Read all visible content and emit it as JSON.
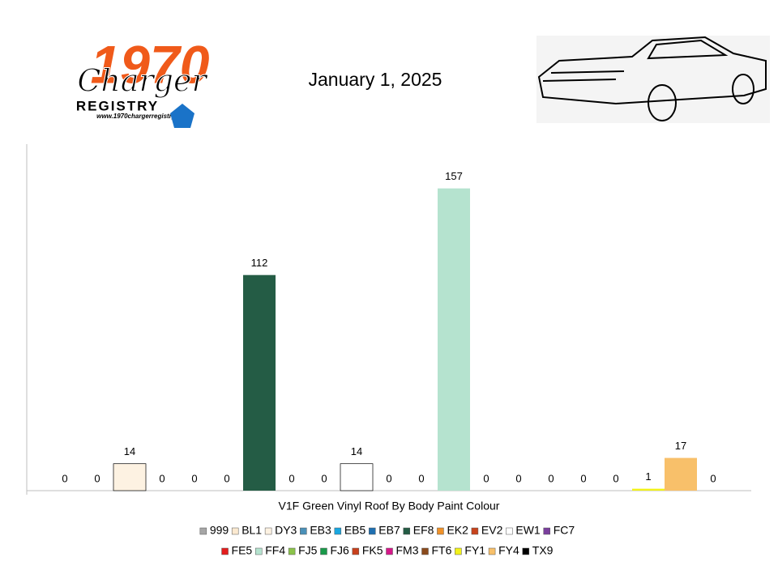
{
  "header": {
    "logo_year": "1970",
    "logo_name": "Charger",
    "logo_registry": "REGISTRY",
    "logo_url": "www.1970chargerregistry.com/"
  },
  "chart_data": {
    "type": "bar",
    "title": "January 1, 2025",
    "categories": [
      "V1F Green Vinyl Roof By Body Paint Colour"
    ],
    "ylim": [
      0,
      180
    ],
    "legend": "bottom",
    "series": [
      {
        "name": "999",
        "color": "#a6a6a6",
        "values": [
          0
        ]
      },
      {
        "name": "BL1",
        "color": "#fbe9d0",
        "values": [
          0
        ]
      },
      {
        "name": "DY3",
        "color": "#fdf2e2",
        "values": [
          14
        ]
      },
      {
        "name": "EB3",
        "color": "#4a90b8",
        "values": [
          0
        ]
      },
      {
        "name": "EB5",
        "color": "#1aa7e0",
        "values": [
          0
        ]
      },
      {
        "name": "EB7",
        "color": "#1f6fb0",
        "values": [
          0
        ]
      },
      {
        "name": "EF8",
        "color": "#245c45",
        "values": [
          112
        ]
      },
      {
        "name": "EK2",
        "color": "#f0922a",
        "values": [
          0
        ]
      },
      {
        "name": "EV2",
        "color": "#c8431c",
        "values": [
          0
        ]
      },
      {
        "name": "EW1",
        "color": "#ffffff",
        "values": [
          14
        ]
      },
      {
        "name": "FC7",
        "color": "#7a3f9d",
        "values": [
          0
        ]
      },
      {
        "name": "FE5",
        "color": "#e41d1d",
        "values": [
          0
        ]
      },
      {
        "name": "FF4",
        "color": "#b5e3cf",
        "values": [
          157
        ]
      },
      {
        "name": "FJ5",
        "color": "#8bc34a",
        "values": [
          0
        ]
      },
      {
        "name": "FJ6",
        "color": "#1a9a4a",
        "values": [
          0
        ]
      },
      {
        "name": "FK5",
        "color": "#c8401c",
        "values": [
          0
        ]
      },
      {
        "name": "FM3",
        "color": "#d6188a",
        "values": [
          0
        ]
      },
      {
        "name": "FT6",
        "color": "#8b4a1c",
        "values": [
          0
        ]
      },
      {
        "name": "FY1",
        "color": "#f2f21a",
        "values": [
          1
        ]
      },
      {
        "name": "FY4",
        "color": "#f8c06a",
        "values": [
          17
        ]
      },
      {
        "name": "TX9",
        "color": "#000000",
        "values": [
          0
        ]
      }
    ]
  }
}
